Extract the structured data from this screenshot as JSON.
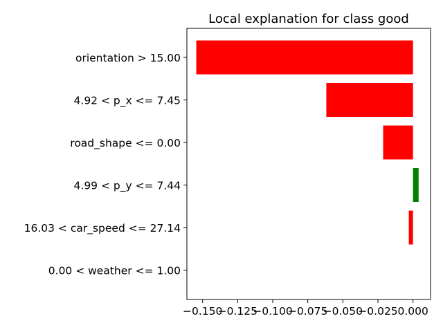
{
  "chart_data": {
    "type": "bar",
    "orientation": "horizontal",
    "title": "Local explanation for class good",
    "xlabel": "",
    "ylabel": "",
    "xlim": [
      -0.1612,
      0.0125
    ],
    "grid": false,
    "legend": "none",
    "colors": {
      "positive": "#008000",
      "negative": "#ff0000",
      "axis": "#000000"
    },
    "categories": [
      "orientation > 15.00",
      "4.92 < p_x <= 7.45",
      "road_shape <= 0.00",
      "4.99 < p_y <= 7.44",
      "16.03 < car_speed <= 27.14",
      "0.00 < weather <= 1.00"
    ],
    "values": [
      -0.1545,
      -0.0618,
      -0.0213,
      0.004,
      -0.003,
      0.0
    ],
    "xticks": [
      -0.15,
      -0.125,
      -0.1,
      -0.075,
      -0.05,
      -0.025,
      0.0
    ],
    "xtick_labels": [
      "−0.150",
      "−0.125",
      "−0.100",
      "−0.075",
      "−0.050",
      "−0.025",
      "0.000"
    ]
  }
}
